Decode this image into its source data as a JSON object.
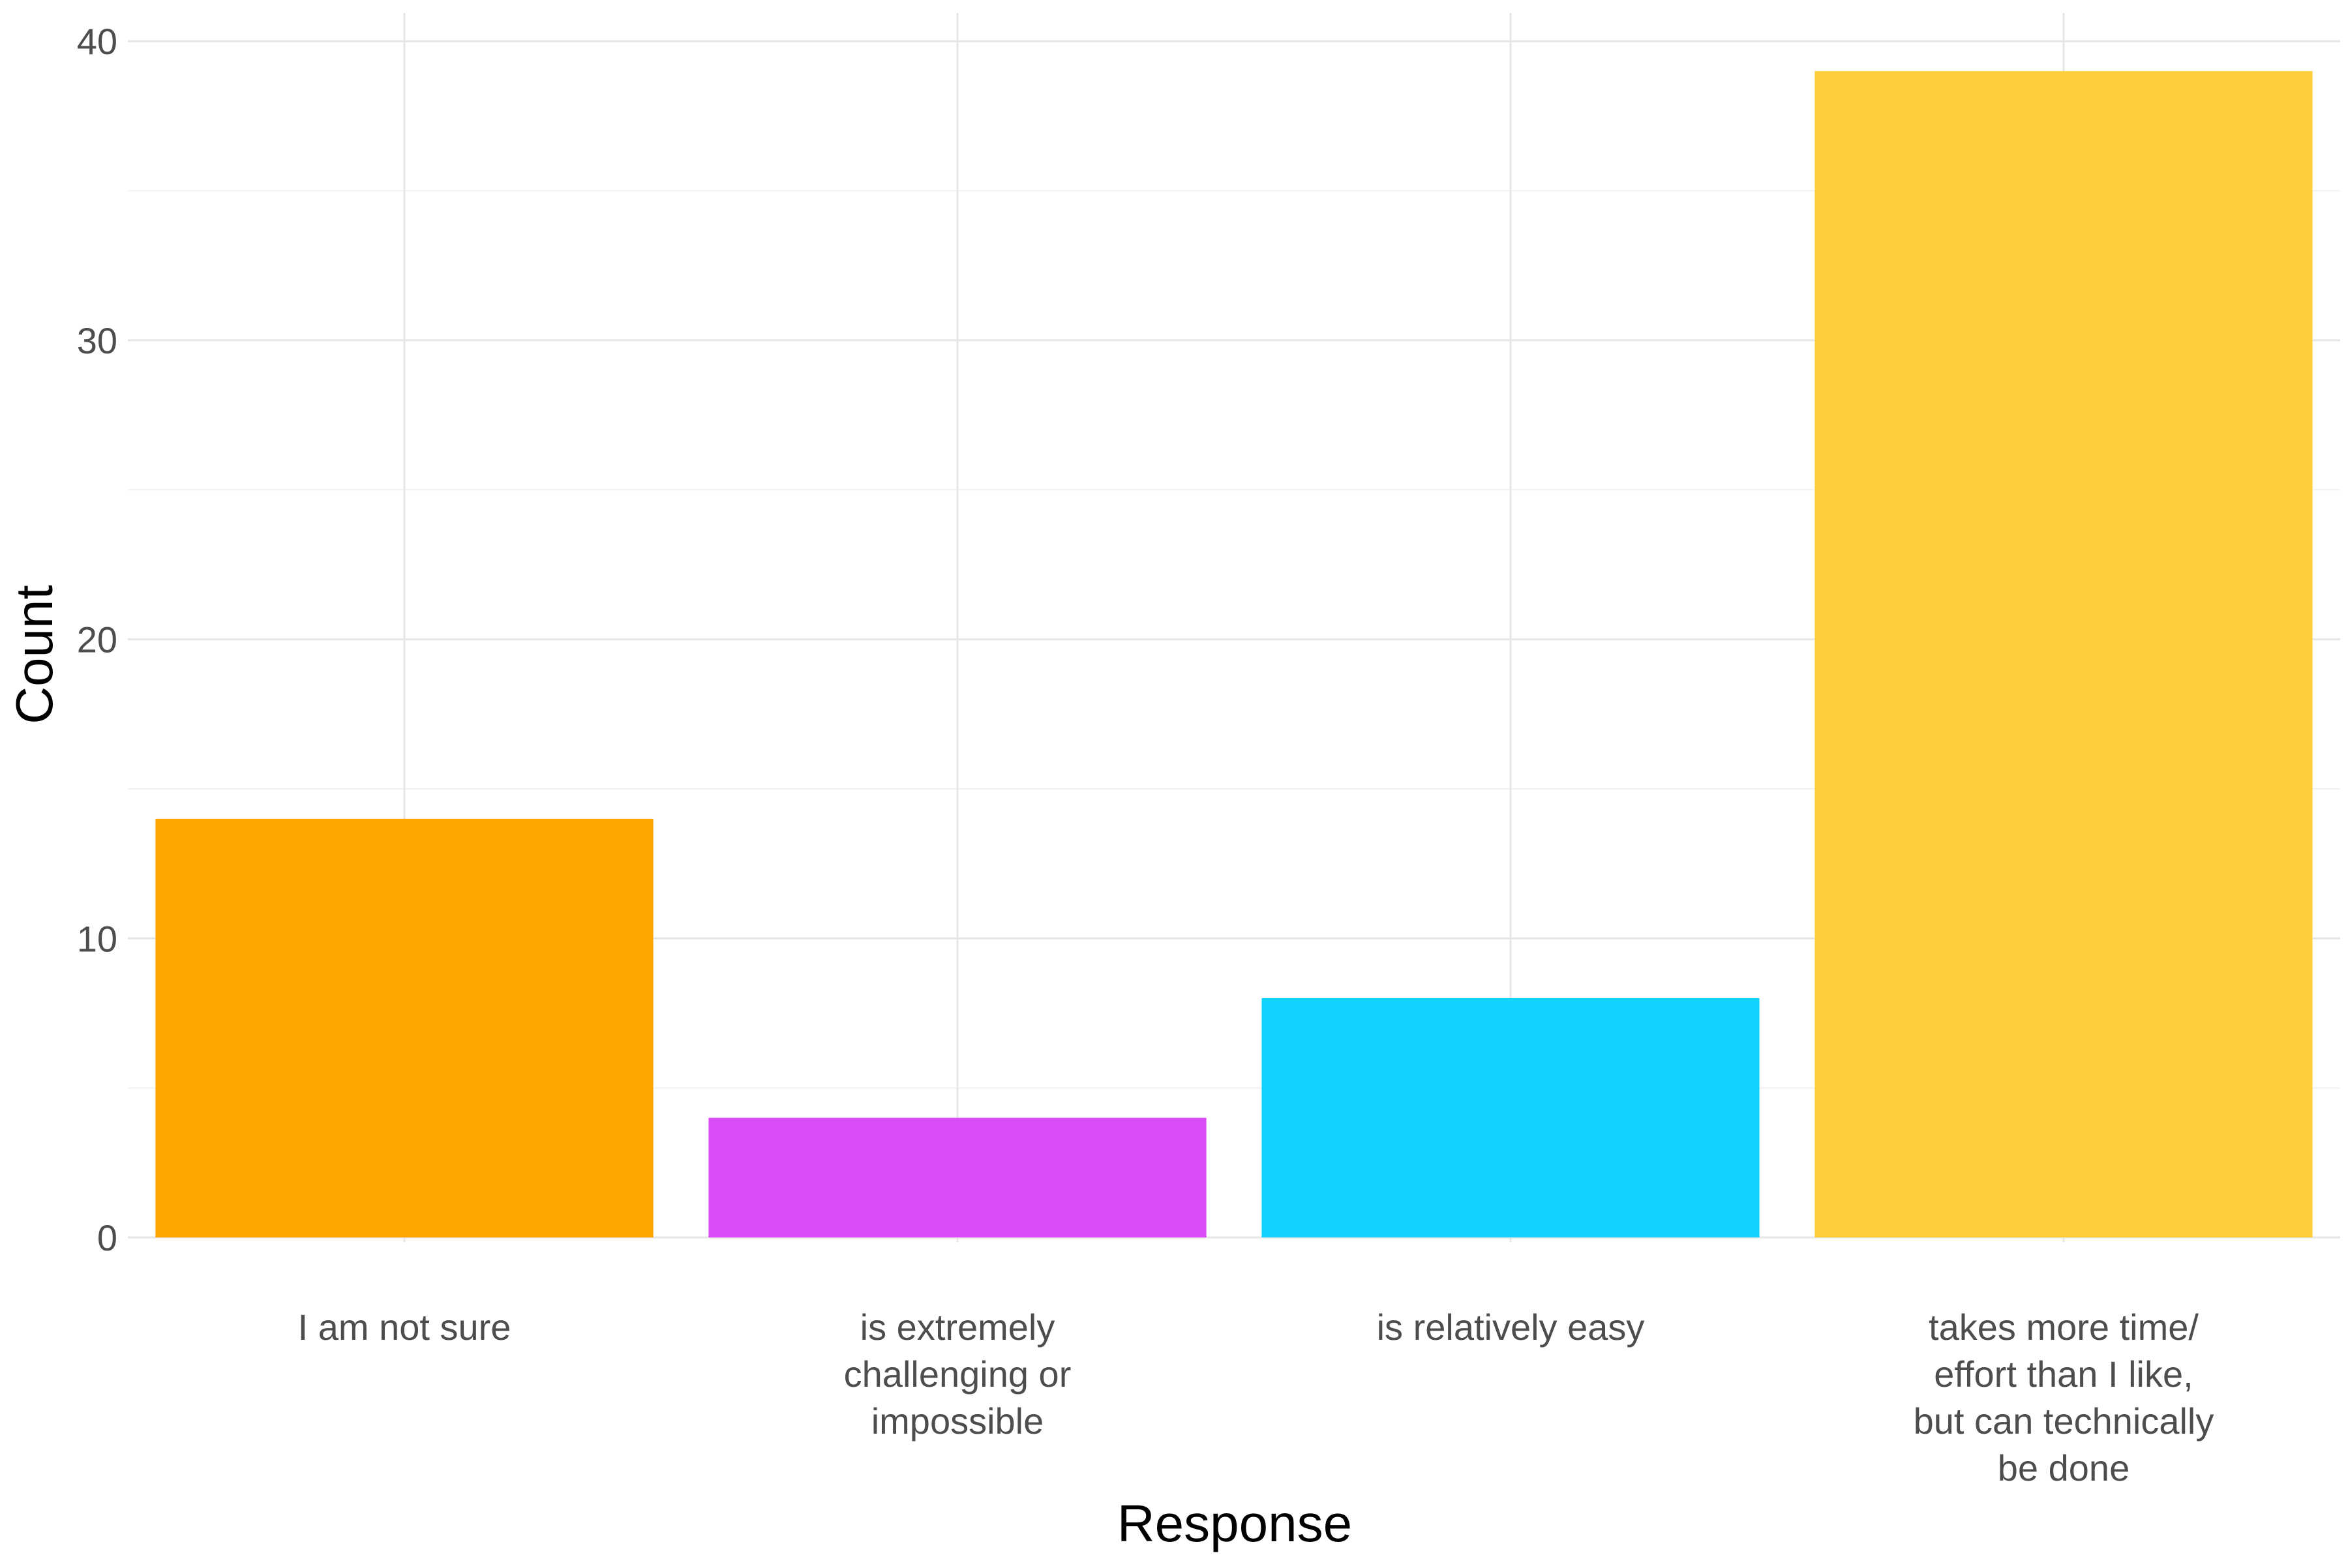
{
  "chart_data": {
    "type": "bar",
    "categories": [
      "I am not sure",
      "is extremely challenging or impossible",
      "is relatively easy",
      "takes more time/ effort than I like, but can technically be done"
    ],
    "category_lines": [
      [
        "I am not sure"
      ],
      [
        "is extremely",
        "challenging or",
        "impossible"
      ],
      [
        "is relatively easy"
      ],
      [
        "takes more time/",
        "effort than I like,",
        "but can technically",
        "be done"
      ]
    ],
    "values": [
      14,
      4,
      8,
      39
    ],
    "colors": [
      "#FFA500",
      "#D94BF5",
      "#12D2FF",
      "#FFCE3C"
    ],
    "xlabel": "Response",
    "ylabel": "Count",
    "ylim": [
      0,
      40
    ],
    "y_ticks": [
      0,
      10,
      20,
      30,
      40
    ],
    "grid": true,
    "legend": "none"
  }
}
